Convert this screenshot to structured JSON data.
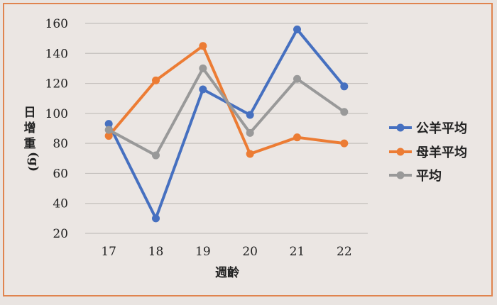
{
  "chart_data": {
    "type": "line",
    "title": "",
    "xlabel": "週齡",
    "ylabel": "日增重(g)",
    "categories": [
      "17",
      "18",
      "19",
      "20",
      "21",
      "22"
    ],
    "ylim": [
      20,
      160
    ],
    "yticks": [
      20,
      40,
      60,
      80,
      100,
      120,
      140,
      160
    ],
    "grid": true,
    "legend": "right",
    "series": [
      {
        "name": "公羊平均",
        "color": "#4670c0",
        "values": [
          93,
          30,
          116,
          99,
          156,
          118
        ]
      },
      {
        "name": "母羊平均",
        "color": "#ec7c34",
        "values": [
          85,
          122,
          145,
          73,
          84,
          80
        ]
      },
      {
        "name": "平均",
        "color": "#999999",
        "values": [
          89,
          72,
          130,
          87,
          123,
          101
        ]
      }
    ]
  }
}
